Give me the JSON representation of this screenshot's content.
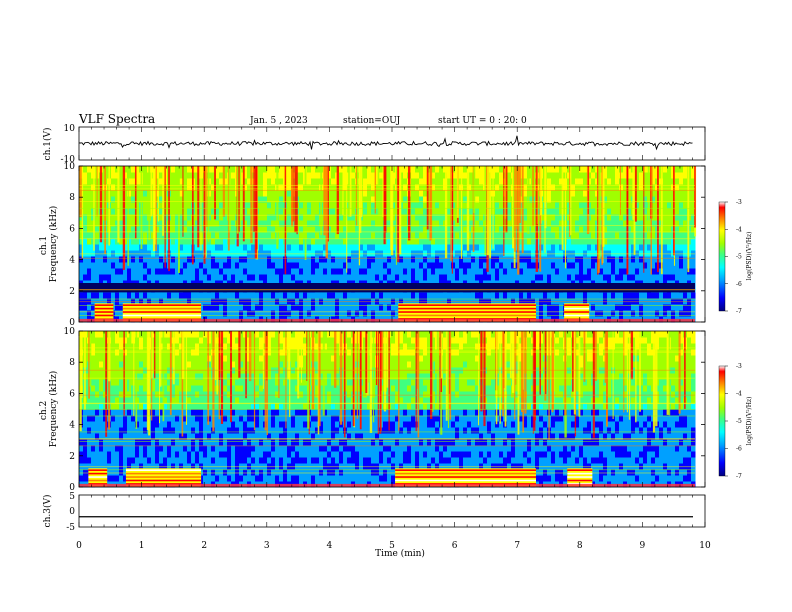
{
  "header": {
    "title": "VLF Spectra",
    "date": "Jan. 5 , 2023",
    "station": "station=OUJ",
    "start": "start UT = 0 : 20: 0"
  },
  "chart_data": [
    {
      "type": "line",
      "panel": "ch1-waveform",
      "ylabel": "ch.1(V)",
      "ylim": [
        -10,
        10
      ],
      "yticks": [
        "10",
        "-10"
      ],
      "xlim": [
        0,
        9.85
      ],
      "series": [
        {
          "values_summary": "noisy trace around 0 V, amplitude about ±2 V with spikes"
        }
      ]
    },
    {
      "type": "heatmap",
      "panel": "ch1-spectrogram",
      "ylabel": "ch.1\nFrequency (kHz)",
      "ylim": [
        0,
        10
      ],
      "yticks": [
        "0",
        "2",
        "4",
        "6",
        "8",
        "10"
      ],
      "xlim": [
        0,
        9.85
      ],
      "colorbar": {
        "label": "log(PSD)(V²/Hz)",
        "range": [
          -7,
          -3
        ],
        "ticks": [
          "-3",
          "-4",
          "-5",
          "-6",
          "-7"
        ]
      },
      "features": {
        "background_high_freq": "green/cyan (~-5.5) with vertical sferics",
        "low_band_2_to_4khz": "blue (~-6.3)",
        "narrow_band_about_2.3khz": "dark blue (~-6.8)",
        "intense_low_freq_bursts_0_to_1khz_min": [
          [
            0.25,
            0.55
          ],
          [
            0.7,
            1.95
          ],
          [
            5.1,
            7.3
          ],
          [
            7.75,
            8.15
          ]
        ]
      }
    },
    {
      "type": "heatmap",
      "panel": "ch2-spectrogram",
      "ylabel": "ch.2\nFrequency (kHz)",
      "ylim": [
        0,
        10
      ],
      "yticks": [
        "0",
        "2",
        "4",
        "6",
        "8",
        "10"
      ],
      "xlim": [
        0,
        9.85
      ],
      "colorbar": {
        "label": "log(PSD)(V²/Hz)",
        "range": [
          -7,
          -3
        ],
        "ticks": [
          "-3",
          "-4",
          "-5",
          "-6",
          "-7"
        ]
      },
      "features": {
        "background_high_freq": "green/cyan (~-5.5) with vertical sferics",
        "low_band_2_to_5khz": "blue/cyan (~-6.0)",
        "intense_low_freq_bursts_0_to_1.3khz_min": [
          [
            0.15,
            0.45
          ],
          [
            0.75,
            1.95
          ],
          [
            5.05,
            7.3
          ],
          [
            7.8,
            8.2
          ]
        ]
      }
    },
    {
      "type": "line",
      "panel": "ch3-waveform",
      "ylabel": "ch.3(V)",
      "ylim": [
        -5,
        5
      ],
      "yticks": [
        "5",
        "0",
        "-5"
      ],
      "xlim": [
        0,
        9.85
      ],
      "series": [
        {
          "values_summary": "flat line at about -1.8 V"
        }
      ]
    }
  ],
  "xaxis": {
    "label": "Time (min)",
    "ticks": [
      "0",
      "1",
      "2",
      "3",
      "4",
      "5",
      "6",
      "7",
      "8",
      "9",
      "10"
    ]
  },
  "colors": {
    "cmap": [
      "#000080",
      "#0000ff",
      "#00a0ff",
      "#00ffff",
      "#40ff80",
      "#a0ff00",
      "#ffff00",
      "#ff8000",
      "#ff0000",
      "#ffffff"
    ]
  }
}
